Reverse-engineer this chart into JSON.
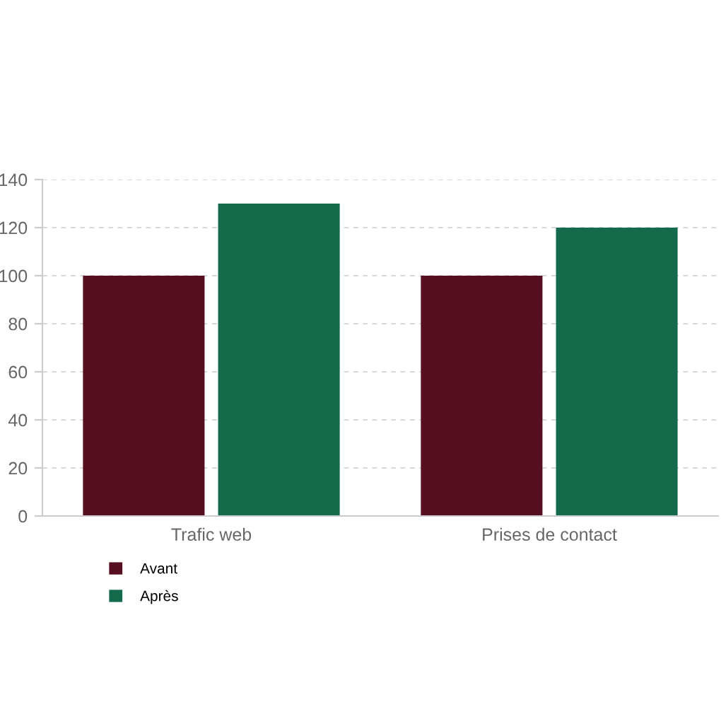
{
  "chart_data": {
    "type": "bar",
    "categories": [
      "Trafic web",
      "Prises de contact"
    ],
    "series": [
      {
        "name": "Avant",
        "color": "#560f20",
        "values": [
          100,
          100
        ]
      },
      {
        "name": "Après",
        "color": "#146b4c",
        "values": [
          130,
          120
        ]
      }
    ],
    "ylim": [
      0,
      140
    ],
    "yticks": [
      0,
      20,
      40,
      60,
      80,
      100,
      120,
      140
    ],
    "grid": "y",
    "legend": "bottom left"
  }
}
